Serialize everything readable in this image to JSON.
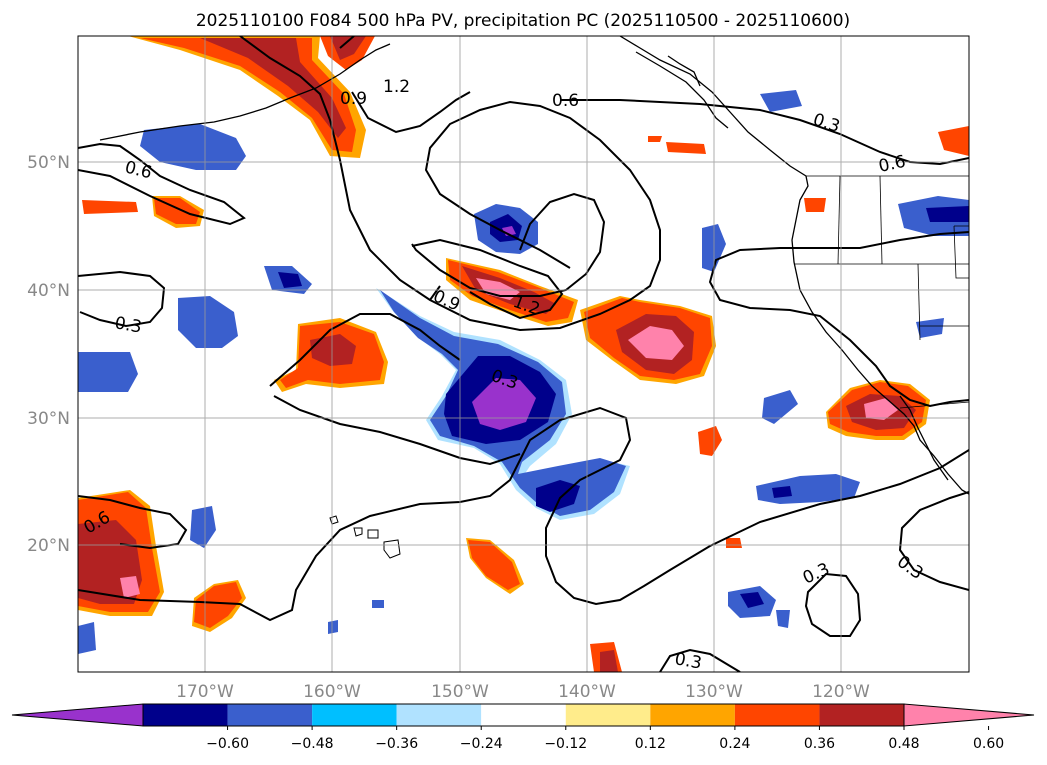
{
  "title": "2025110100 F084 500 hPa PV, precipitation PC (2025110500 - 2025110600)",
  "map": {
    "lon_range": [
      -180,
      -110
    ],
    "lat_range": [
      10,
      60
    ],
    "lat_labels": [
      "50°N",
      "40°N",
      "30°N",
      "20°N"
    ],
    "lon_labels": [
      "170°W",
      "160°W",
      "150°W",
      "140°W",
      "130°W",
      "120°W"
    ],
    "gridlines": true
  },
  "contours": {
    "variable": "500 hPa PV",
    "labels": [
      "1.2",
      "0.9",
      "0.6",
      "0.3",
      "0.6",
      "0.6",
      "0.9",
      "0.3",
      "0.3",
      "0.6",
      "0.3",
      "0.3",
      "0.3",
      "1.2"
    ]
  },
  "colorbar": {
    "tick_labels": [
      "−0.60",
      "−0.48",
      "−0.36",
      "−0.24",
      "−0.12",
      "0.12",
      "0.24",
      "0.36",
      "0.48",
      "0.60"
    ],
    "colors": [
      "#9932cc",
      "#00008b",
      "#3a5fcd",
      "#00bfff",
      "#b0e2ff",
      "#ffffff",
      "#ffec8b",
      "#ffa500",
      "#ff4500",
      "#b22222",
      "#ff82ab"
    ],
    "extend": "both"
  }
}
